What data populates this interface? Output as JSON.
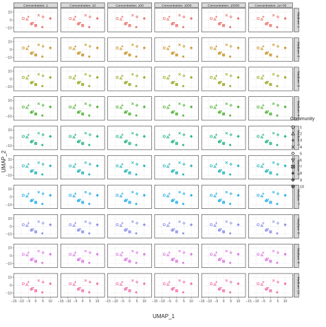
{
  "chart_data": {
    "type": "scatter",
    "xlabel": "UMAP_1",
    "ylabel": "UMAP_2",
    "xlim": [
      -15,
      15
    ],
    "ylim": [
      -15,
      15
    ],
    "x_ticks": [
      -15,
      -10,
      -5,
      0,
      5,
      10
    ],
    "x_tick_labels": [
      "−15",
      "−10",
      "−5",
      "0",
      "5",
      "10"
    ],
    "y_ticks": [
      -10,
      0,
      10
    ],
    "y_tick_labels": [
      "−10",
      "0",
      "10"
    ],
    "grid": true,
    "legend_placement": "right",
    "legend_title": "Community",
    "legend_items": [
      {
        "label": "1",
        "shape": "circle-open"
      },
      {
        "label": "2",
        "shape": "triangle-open"
      },
      {
        "label": "3",
        "shape": "plus"
      },
      {
        "label": "4",
        "shape": "cross"
      },
      {
        "label": "5",
        "shape": "diamond-open"
      },
      {
        "label": "6",
        "shape": "triangle-down-open"
      },
      {
        "label": "7",
        "shape": "square-cross"
      },
      {
        "label": "8",
        "shape": "asterisk"
      },
      {
        "label": "9",
        "shape": "diamond-plus"
      },
      {
        "label": "10",
        "shape": "circle-plus"
      }
    ],
    "column_headers": [
      "Concentration: 1",
      "Concentration: 10",
      "Concentration: 100",
      "Concentration: 1000",
      "Concentration: 10000",
      "Concentration: 1e+05"
    ],
    "row_headers": [
      "Medium: 1",
      "Medium: 2",
      "Medium: 3",
      "Medium: 4",
      "Medium: 5",
      "Medium: 6",
      "Medium: 7",
      "Medium: 8",
      "Medium: 9",
      "Medium: 10"
    ],
    "row_colors": [
      "#e8736f",
      "#c8962a",
      "#9aa81f",
      "#4fb135",
      "#20b37d",
      "#1fb4b6",
      "#22aee6",
      "#8a8de8",
      "#d978e0",
      "#ef70a8"
    ],
    "series": [
      {
        "x": -8.5,
        "y": 2
      },
      {
        "x": -6,
        "y": 1
      },
      {
        "x": -5,
        "y": 4
      },
      {
        "x": 2,
        "y": 6
      },
      {
        "x": 5,
        "y": 4
      },
      {
        "x": -2,
        "y": -4
      },
      {
        "x": 0,
        "y": -7
      },
      {
        "x": 4.5,
        "y": -9
      },
      {
        "x": 10,
        "y": 2
      },
      {
        "x": -3,
        "y": -5
      }
    ]
  }
}
